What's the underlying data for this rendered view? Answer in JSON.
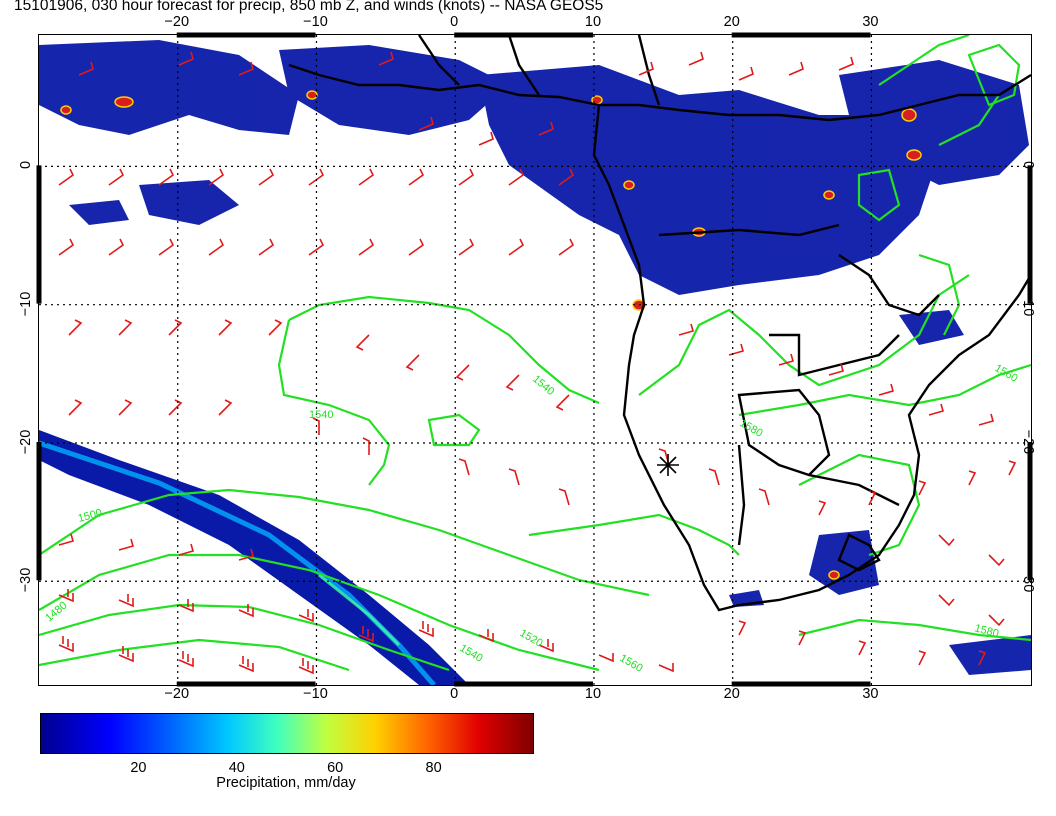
{
  "title": "15101906, 030 hour forecast for precip, 850 mb Z, and winds (knots) -- NASA GEOS5",
  "map": {
    "lon_range": [
      -30,
      41.5
    ],
    "lat_range": [
      -37.5,
      9.5
    ],
    "lon_ticks": [
      {
        "value": -20,
        "label": "−20"
      },
      {
        "value": -10,
        "label": "−10"
      },
      {
        "value": 0,
        "label": "0"
      },
      {
        "value": 10,
        "label": "10"
      },
      {
        "value": 20,
        "label": "20"
      },
      {
        "value": 30,
        "label": "30"
      }
    ],
    "lat_ticks": [
      {
        "value": 0,
        "label": "0"
      },
      {
        "value": -10,
        "label": "−10"
      },
      {
        "value": -20,
        "label": "−20"
      },
      {
        "value": -30,
        "label": "−30"
      }
    ],
    "contour_labels": [
      "1500",
      "1480",
      "1540",
      "1540",
      "1560",
      "1580",
      "1520",
      "1540",
      "1560",
      "1580"
    ],
    "colors": {
      "precip_fill": "#0a1aa8",
      "precip_core": "#d81e1e",
      "contours": "#22e022",
      "wind_barbs": "#e01a1a",
      "coastlines": "#000000"
    }
  },
  "colorbar": {
    "label": "Precipitation, mm/day",
    "range": [
      0,
      100
    ],
    "ticks": [
      {
        "value": 20,
        "label": "20"
      },
      {
        "value": 40,
        "label": "40"
      },
      {
        "value": 60,
        "label": "60"
      },
      {
        "value": 80,
        "label": "80"
      }
    ]
  }
}
